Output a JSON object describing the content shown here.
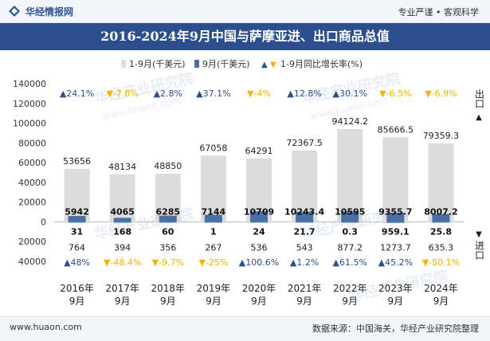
{
  "header": {
    "site_name": "华经情报网",
    "tagline": "专业严谨 • 客观科学"
  },
  "title": "2016-2024年9月中国与萨摩亚进、出口商品总值",
  "legend": {
    "cumulative": "1-9月(千美元)",
    "month": "9月(千美元)",
    "growth": "1-9月同比增长率(%)"
  },
  "side_labels": {
    "export": "出口",
    "import": "进口"
  },
  "footer": {
    "url": "www.huaon.com",
    "source": "数据来源：中国海关，华经产业研究院整理"
  },
  "watermark": "华经产业研究院",
  "watermark_url": "www.huaon.com",
  "colors": {
    "cumulative_bar": "#dcdcdc",
    "month_bar": "#4a6fa5",
    "up": "#2b4f8e",
    "down": "#f0b400",
    "title_bg": "#2b4f8e"
  },
  "chart_data": {
    "type": "bar",
    "title": "2016-2024年9月中国与萨摩亚进、出口商品总值",
    "categories": [
      "2016年\n9月",
      "2017年\n9月",
      "2018年\n9月",
      "2019年\n9月",
      "2020年\n9月",
      "2021年\n9月",
      "2022年\n9月",
      "2023年\n9月",
      "2024年\n9月"
    ],
    "ylim": [
      -40000,
      140000
    ],
    "yticks": [
      -40000,
      -20000,
      0,
      20000,
      40000,
      60000,
      80000,
      100000,
      120000,
      140000
    ],
    "ytick_labels": [
      "40000",
      "20000",
      "0",
      "20000",
      "40000",
      "60000",
      "80000",
      "100000",
      "120000",
      "140000"
    ],
    "export": {
      "cumulative": [
        53656,
        48134,
        48850,
        67058,
        64291,
        72367.5,
        94124.2,
        85666.5,
        79359.3
      ],
      "cumulative_labels": [
        "53656",
        "48134",
        "48850",
        "67058",
        "64291",
        "72367.5",
        "94124.2",
        "85666.5",
        "79359.3"
      ],
      "month": [
        5942,
        4065,
        6285,
        7144,
        10709,
        10243.4,
        10595,
        9355.7,
        8007.2
      ],
      "month_labels": [
        "5942",
        "4065",
        "6285",
        "7144",
        "10709",
        "10243.4",
        "10595",
        "9355.7",
        "8007.2"
      ],
      "growth": [
        24.1,
        -7.8,
        2.8,
        37.1,
        -4,
        12.8,
        30.1,
        -6.5,
        -6.9
      ],
      "growth_labels": [
        "24.1%",
        "-7.8%",
        "2.8%",
        "37.1%",
        "-4%",
        "12.8%",
        "30.1%",
        "-6.5%",
        "-6.9%"
      ]
    },
    "import": {
      "cumulative": [
        764,
        394,
        356,
        267,
        536,
        543,
        877.2,
        1273.7,
        635.3
      ],
      "cumulative_labels": [
        "764",
        "394",
        "356",
        "267",
        "536",
        "543",
        "877.2",
        "1273.7",
        "635.3"
      ],
      "month": [
        31,
        168,
        60,
        1,
        24,
        21.7,
        0.3,
        959.1,
        25.8
      ],
      "month_labels": [
        "31",
        "168",
        "60",
        "1",
        "24",
        "21.7",
        "0.3",
        "959.1",
        "25.8"
      ],
      "growth": [
        48,
        -48.4,
        -9.7,
        -25,
        100.6,
        1.2,
        61.5,
        45.2,
        -50.1
      ],
      "growth_labels": [
        "48%",
        "-48.4%",
        "-9.7%",
        "-25%",
        "100.6%",
        "1.2%",
        "61.5%",
        "45.2%",
        "-50.1%"
      ]
    }
  }
}
